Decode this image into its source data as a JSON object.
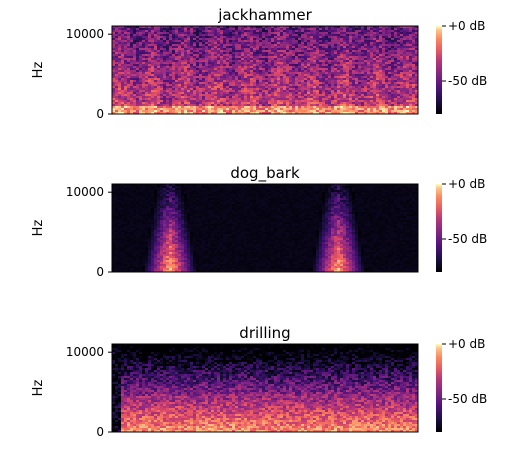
{
  "chart_data": [
    {
      "type": "heatmap",
      "title": "jackhammer",
      "ylabel": "Hz",
      "yticks": [
        {
          "value": 0,
          "label": "0"
        },
        {
          "value": 10000,
          "label": "10000"
        }
      ],
      "ylim": [
        0,
        11025
      ],
      "colorbar": {
        "min": -80,
        "max": 0,
        "ticks": [
          {
            "value": 0,
            "label": "+0 dB"
          },
          {
            "value": -50,
            "label": "-50 dB"
          }
        ]
      },
      "pattern": "broadband-uniform"
    },
    {
      "type": "heatmap",
      "title": "dog_bark",
      "ylabel": "Hz",
      "yticks": [
        {
          "value": 0,
          "label": "0"
        },
        {
          "value": 10000,
          "label": "10000"
        }
      ],
      "ylim": [
        0,
        11025
      ],
      "colorbar": {
        "min": -80,
        "max": 0,
        "ticks": [
          {
            "value": 0,
            "label": "+0 dB"
          },
          {
            "value": -50,
            "label": "-50 dB"
          }
        ]
      },
      "pattern": "two-bursts"
    },
    {
      "type": "heatmap",
      "title": "drilling",
      "ylabel": "Hz",
      "yticks": [
        {
          "value": 0,
          "label": "0"
        },
        {
          "value": 10000,
          "label": "10000"
        }
      ],
      "ylim": [
        0,
        11025
      ],
      "colorbar": {
        "min": -80,
        "max": 0,
        "ticks": [
          {
            "value": 0,
            "label": "+0 dB"
          },
          {
            "value": -50,
            "label": "-50 dB"
          }
        ]
      },
      "pattern": "low-frequency-dominant"
    }
  ],
  "colormap": "magma"
}
